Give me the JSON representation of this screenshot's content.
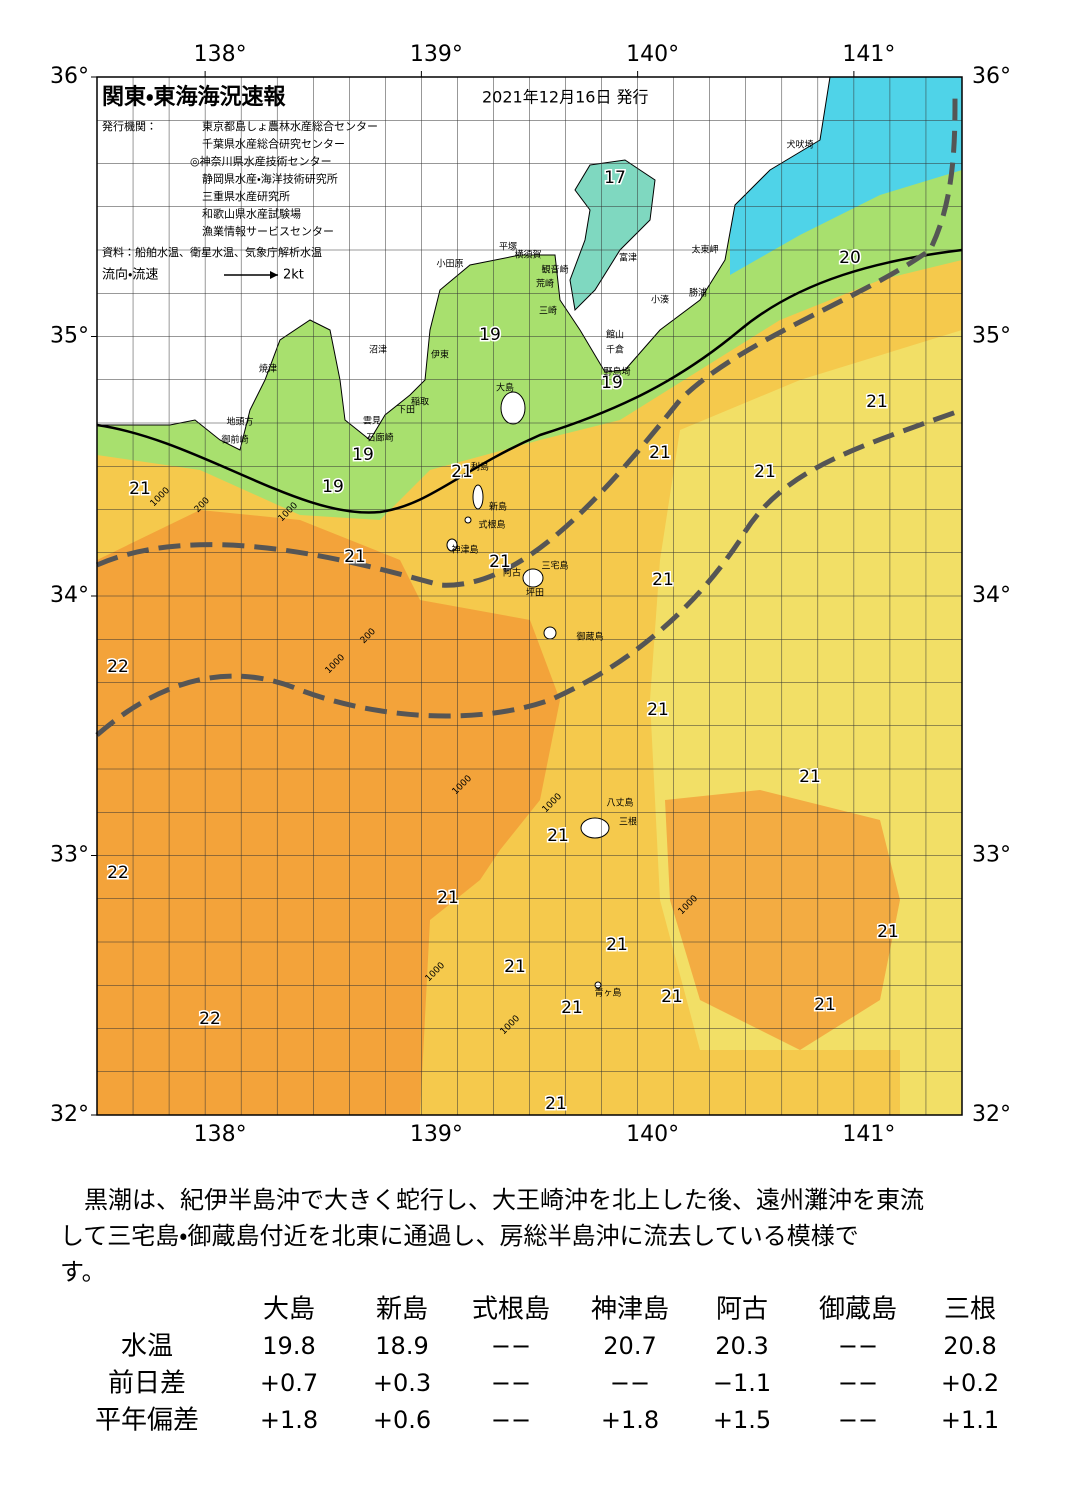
{
  "map": {
    "title": "関東・東海海況速報",
    "date": "2021年12月16日 発行",
    "issuer_label": "発行機関：",
    "issuers": [
      "東京都島しょ農林水産総合センター",
      "千葉県水産総合研究センター",
      "◎神奈川県水産技術センター",
      "静岡県水産・海洋技術研究所",
      "三重県水産研究所",
      "和歌山県水産試験場",
      "漁業情報サービスセンター"
    ],
    "source": "資料：船舶水温、衛星水温、気象庁解析水温",
    "legend": {
      "label": "流向・流速",
      "speed": "2kt"
    },
    "lon_ticks": [
      {
        "value": 138,
        "label": "138°"
      },
      {
        "value": 139,
        "label": "139°"
      },
      {
        "value": 140,
        "label": "140°"
      },
      {
        "value": 141,
        "label": "141°"
      }
    ],
    "lat_ticks": [
      {
        "value": 36,
        "label": "36°"
      },
      {
        "value": 35,
        "label": "35°"
      },
      {
        "value": 34,
        "label": "34°"
      },
      {
        "value": 33,
        "label": "33°"
      },
      {
        "value": 32,
        "label": "32°"
      }
    ],
    "temperature_labels": [
      17,
      20,
      19,
      19,
      21,
      21,
      21,
      21,
      19,
      19,
      21,
      21,
      21,
      21,
      22,
      21,
      21,
      21,
      22,
      21,
      21,
      21,
      21,
      21,
      21,
      21,
      22,
      21
    ],
    "place_names": [
      "犬吠埼",
      "太東岬",
      "勝浦",
      "小湊",
      "富津",
      "館山",
      "千倉",
      "野島埼",
      "横須賀",
      "観音崎",
      "荒崎",
      "三崎",
      "平塚",
      "小田原",
      "伊東",
      "沼津",
      "焼津",
      "地頭方",
      "御前崎",
      "稲取",
      "下田",
      "雲見",
      "石廊崎",
      "大島",
      "利島",
      "新島",
      "式根島",
      "神津島",
      "三宅島",
      "阿古",
      "坪田",
      "御蔵島",
      "八丈島",
      "三根",
      "青ヶ島"
    ],
    "contour_labels": [
      "1000",
      "200",
      "1000",
      "200",
      "1000",
      "1000",
      "1000",
      "1000",
      "1000",
      "1000"
    ]
  },
  "summary_lines": [
    "　黒潮は、紀伊半島沖で大きく蛇行し、大王崎沖を北上した後、遠州灘沖を東流",
    "して三宅島・御蔵島付近を北東に通過し、房総半島沖に流去している模様で",
    "す。"
  ],
  "table": {
    "columns": [
      "大島",
      "新島",
      "式根島",
      "神津島",
      "阿古",
      "御蔵島",
      "三根"
    ],
    "rows": [
      {
        "label": "水温",
        "values": [
          "19.8",
          "18.9",
          "−−",
          "20.7",
          "20.3",
          "−−",
          "20.8"
        ]
      },
      {
        "label": "前日差",
        "values": [
          "+0.7",
          "+0.3",
          "−−",
          "−−",
          "−1.1",
          "−−",
          "+0.2"
        ]
      },
      {
        "label": "平年偏差",
        "values": [
          "+1.8",
          "+0.6",
          "−−",
          "+1.8",
          "+1.5",
          "−−",
          "+1.1"
        ]
      }
    ]
  }
}
